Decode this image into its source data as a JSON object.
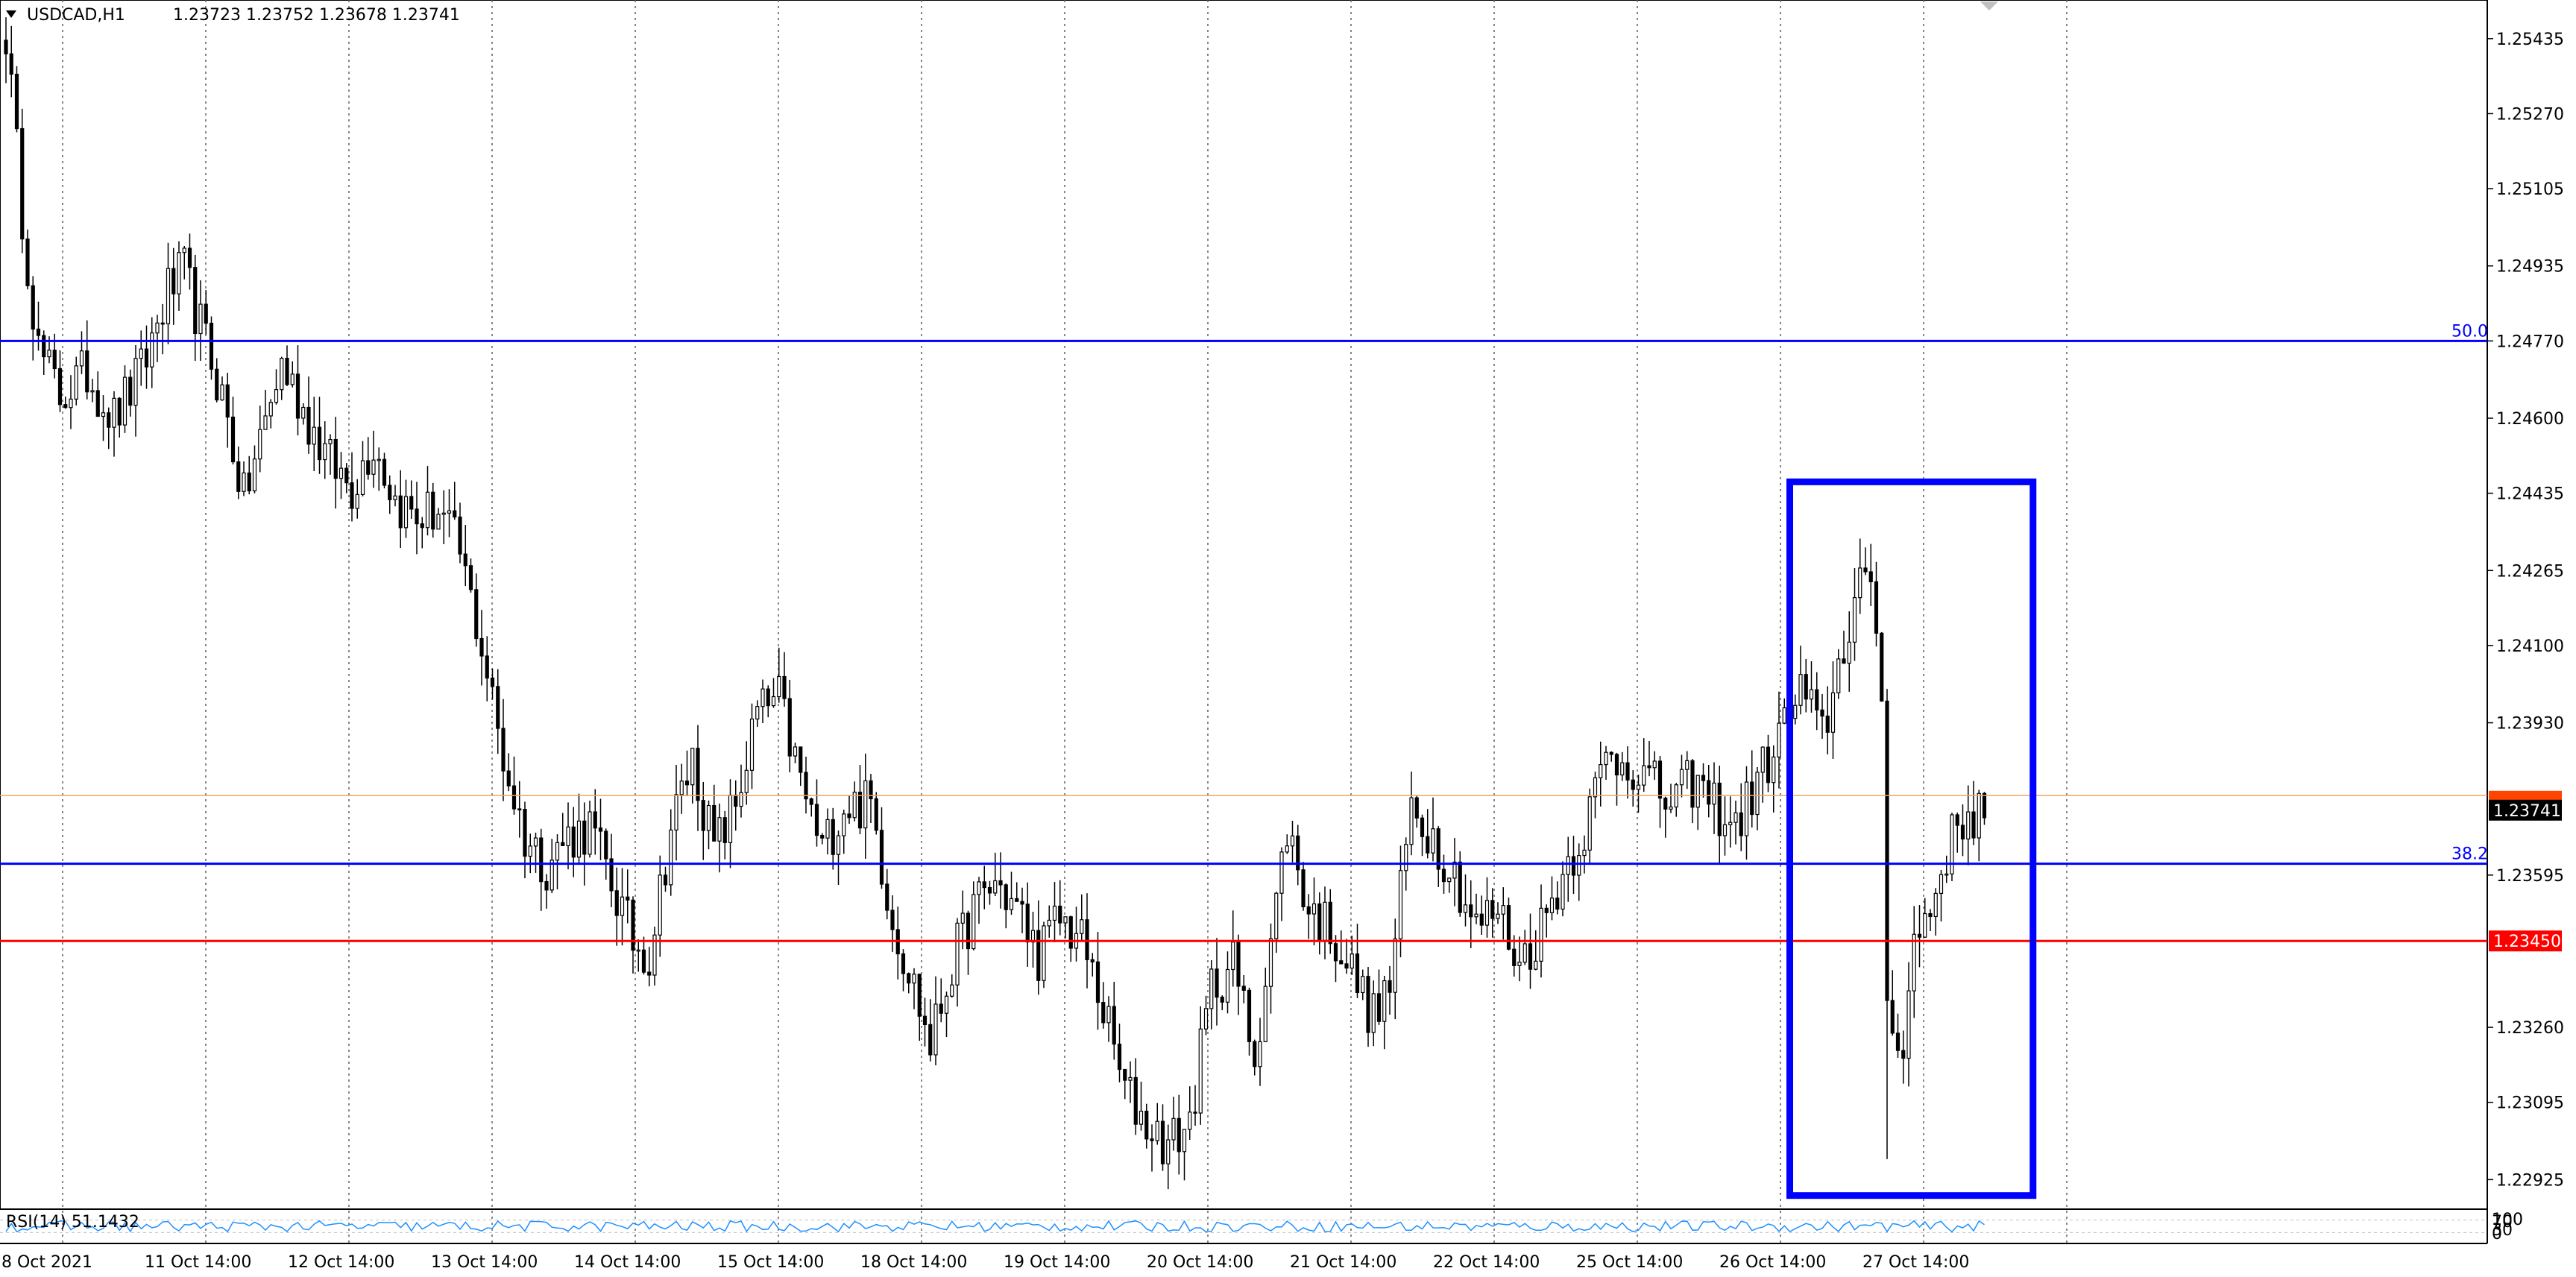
{
  "header": {
    "symbol": "USDCAD,H1",
    "ohlc": "1.23723 1.23752 1.23678 1.23741"
  },
  "indicator": {
    "label": "RSI(14) 51.1432",
    "scale": [
      "100",
      "70",
      "30",
      "0"
    ]
  },
  "colors": {
    "background": "#ffffff",
    "grid": "#606060",
    "candle": "#000000",
    "fib_line": "#0000ff",
    "support_line": "#ff0000",
    "bid_line": "#f4a460",
    "highlight_box": "#0000ff",
    "rsi_line": "#1e90ff"
  },
  "chart_data": {
    "type": "candlestick",
    "symbol": "USDCAD",
    "timeframe": "H1",
    "ylim": [
      1.2286,
      1.2552
    ],
    "y_ticks": [
      "1.25435",
      "1.25270",
      "1.25105",
      "1.24935",
      "1.24770",
      "1.24600",
      "1.24435",
      "1.24265",
      "1.24100",
      "1.23930",
      "1.23595",
      "1.23260",
      "1.23095",
      "1.22925"
    ],
    "x_ticks": [
      "8 Oct 2021",
      "11 Oct 14:00",
      "12 Oct 14:00",
      "13 Oct 14:00",
      "14 Oct 14:00",
      "15 Oct 14:00",
      "18 Oct 14:00",
      "19 Oct 14:00",
      "20 Oct 14:00",
      "21 Oct 14:00",
      "22 Oct 14:00",
      "25 Oct 14:00",
      "26 Oct 14:00",
      "27 Oct 14:00"
    ],
    "price_anchors": [
      [
        0,
        1.2545
      ],
      [
        3,
        1.2505
      ],
      [
        6,
        1.2475
      ],
      [
        10,
        1.2465
      ],
      [
        15,
        1.247
      ],
      [
        20,
        1.246
      ],
      [
        25,
        1.247
      ],
      [
        30,
        1.2488
      ],
      [
        33,
        1.2492
      ],
      [
        36,
        1.248
      ],
      [
        40,
        1.2465
      ],
      [
        44,
        1.2442
      ],
      [
        47,
        1.2455
      ],
      [
        51,
        1.2472
      ],
      [
        55,
        1.2462
      ],
      [
        60,
        1.245
      ],
      [
        64,
        1.2445
      ],
      [
        68,
        1.2455
      ],
      [
        72,
        1.2442
      ],
      [
        76,
        1.2438
      ],
      [
        80,
        1.244
      ],
      [
        84,
        1.243
      ],
      [
        88,
        1.241
      ],
      [
        92,
        1.2385
      ],
      [
        96,
        1.2368
      ],
      [
        100,
        1.2362
      ],
      [
        104,
        1.2368
      ],
      [
        108,
        1.237
      ],
      [
        112,
        1.2358
      ],
      [
        116,
        1.2345
      ],
      [
        119,
        1.2342
      ],
      [
        123,
        1.237
      ],
      [
        127,
        1.2385
      ],
      [
        131,
        1.2365
      ],
      [
        135,
        1.2375
      ],
      [
        139,
        1.2395
      ],
      [
        143,
        1.2398
      ],
      [
        147,
        1.238
      ],
      [
        151,
        1.2365
      ],
      [
        155,
        1.2375
      ],
      [
        160,
        1.2375
      ],
      [
        164,
        1.235
      ],
      [
        168,
        1.2335
      ],
      [
        171,
        1.2322
      ],
      [
        175,
        1.234
      ],
      [
        179,
        1.2352
      ],
      [
        183,
        1.2358
      ],
      [
        187,
        1.2352
      ],
      [
        191,
        1.2342
      ],
      [
        195,
        1.235
      ],
      [
        199,
        1.2345
      ],
      [
        203,
        1.233
      ],
      [
        207,
        1.2312
      ],
      [
        211,
        1.2305
      ],
      [
        215,
        1.23
      ],
      [
        219,
        1.2305
      ],
      [
        223,
        1.2335
      ],
      [
        227,
        1.234
      ],
      [
        231,
        1.232
      ],
      [
        234,
        1.2345
      ],
      [
        237,
        1.237
      ],
      [
        241,
        1.2352
      ],
      [
        245,
        1.2348
      ],
      [
        249,
        1.2338
      ],
      [
        253,
        1.2328
      ],
      [
        256,
        1.2335
      ],
      [
        260,
        1.2375
      ],
      [
        264,
        1.2368
      ],
      [
        268,
        1.236
      ],
      [
        272,
        1.2348
      ],
      [
        276,
        1.2352
      ],
      [
        280,
        1.234
      ],
      [
        284,
        1.2348
      ],
      [
        288,
        1.236
      ],
      [
        292,
        1.237
      ],
      [
        296,
        1.2385
      ],
      [
        300,
        1.2385
      ],
      [
        304,
        1.238
      ],
      [
        308,
        1.2375
      ],
      [
        312,
        1.238
      ],
      [
        316,
        1.2375
      ],
      [
        320,
        1.237
      ],
      [
        324,
        1.238
      ],
      [
        328,
        1.239
      ],
      [
        332,
        1.24
      ],
      [
        336,
        1.239
      ],
      [
        340,
        1.241
      ],
      [
        343,
        1.2425
      ],
      [
        346,
        1.2415
      ],
      [
        347,
        1.24
      ],
      [
        348,
        1.233
      ],
      [
        349,
        1.233
      ],
      [
        351,
        1.232
      ],
      [
        353,
        1.2345
      ],
      [
        356,
        1.2352
      ],
      [
        359,
        1.2365
      ],
      [
        362,
        1.2372
      ],
      [
        366,
        1.2374
      ]
    ],
    "horizontal_levels": [
      {
        "price": 1.2477,
        "label": "50.0",
        "color": "#0000ff"
      },
      {
        "price": 1.2362,
        "label": "38.2",
        "color": "#0000ff"
      },
      {
        "price": 1.2345,
        "label": "1.23450",
        "color": "#ff0000"
      },
      {
        "price": 1.2377,
        "label": "",
        "color": "#f4a460"
      }
    ],
    "current_price": "1.23741",
    "highlight_box": {
      "x_from": 330,
      "x_to": 375,
      "y_top": 1.2446,
      "y_bottom": 1.2289
    },
    "grid": "vertical-dotted"
  }
}
